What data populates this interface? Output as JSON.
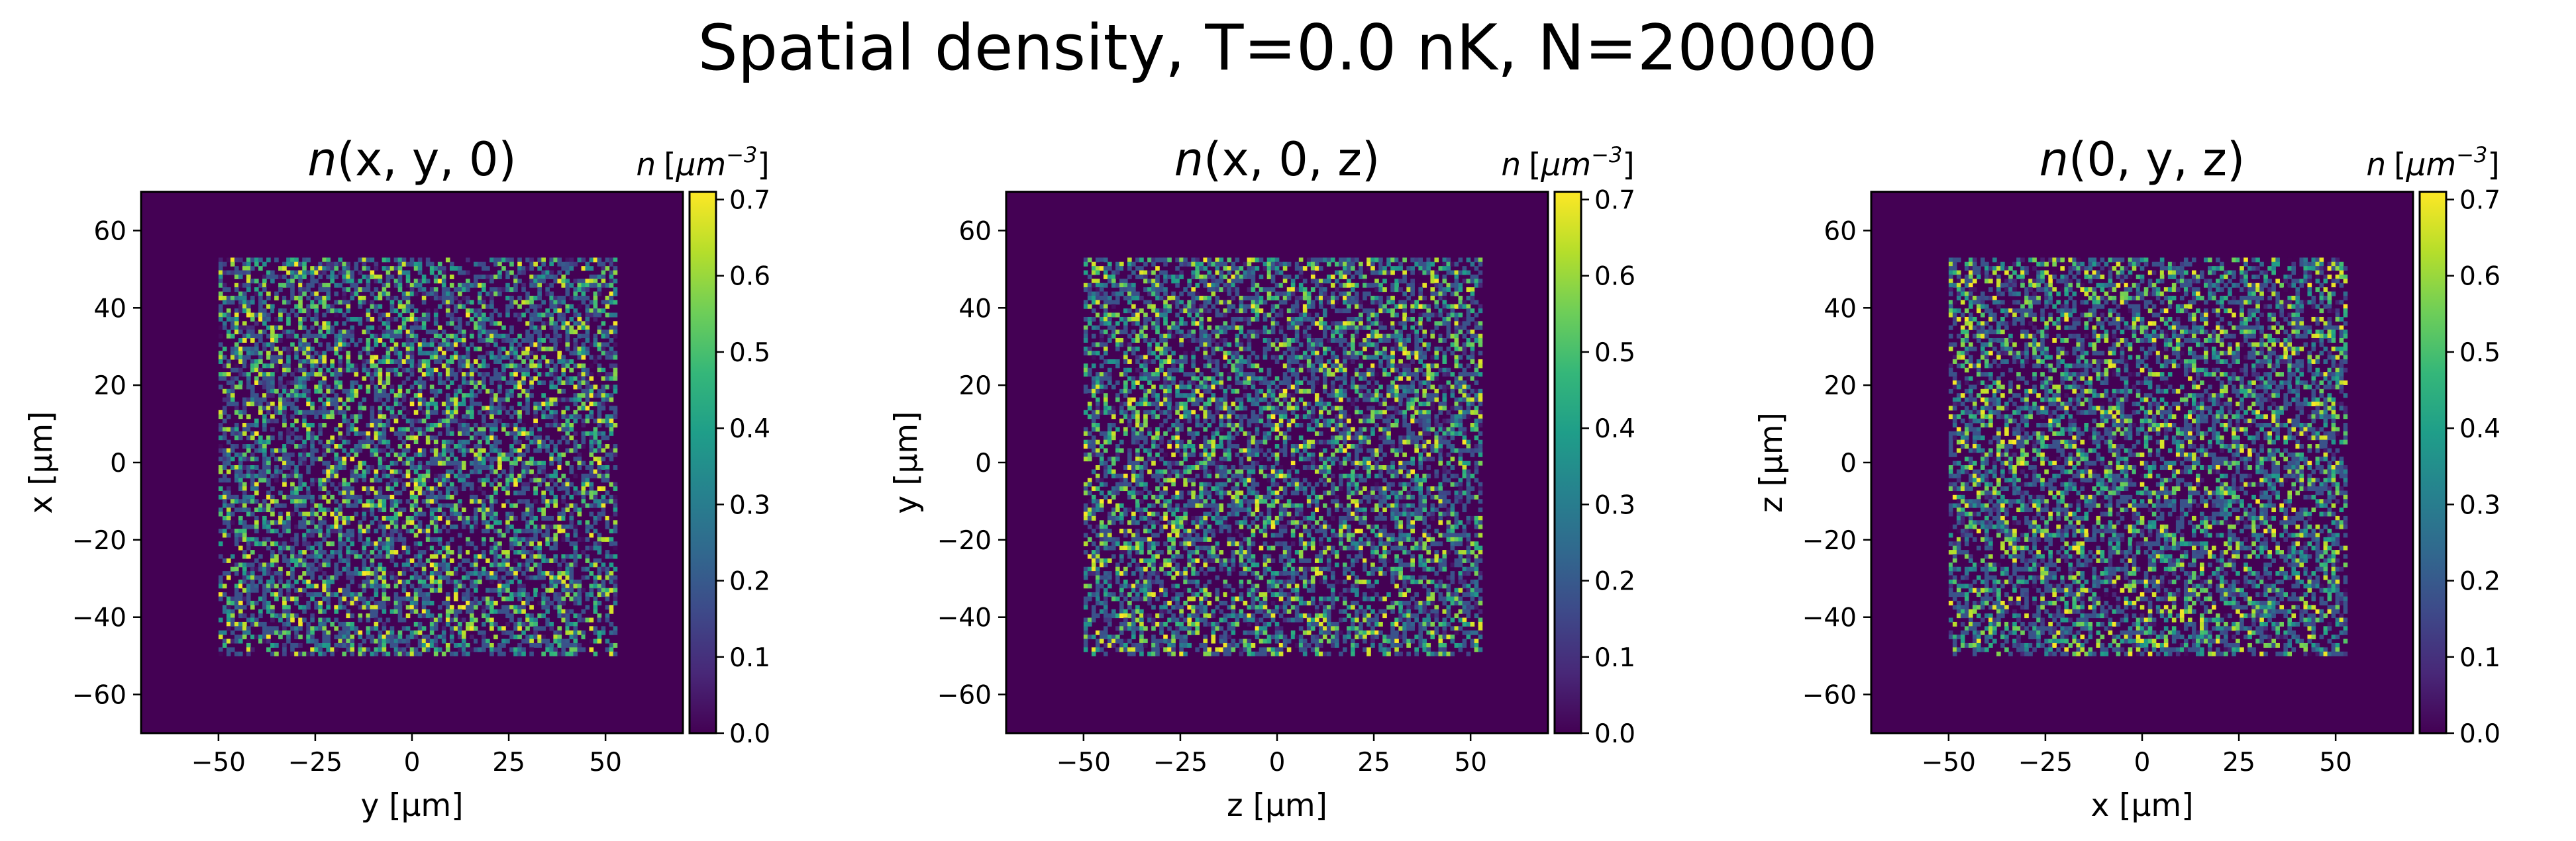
{
  "suptitle": "Spatial density, T=0.0 nK, N=200000",
  "colorbar_label": {
    "symbol": "n",
    "unit_open": "[",
    "unit_base": "μm",
    "unit_exp": "−3",
    "unit_close": "]"
  },
  "colormap": {
    "name": "viridis",
    "stops": [
      "#440154",
      "#482878",
      "#3e4989",
      "#31688e",
      "#26828e",
      "#1f9e89",
      "#35b779",
      "#6ece58",
      "#b5de2b",
      "#fde725"
    ]
  },
  "chart_data": [
    {
      "type": "heatmap",
      "title_func": "n",
      "title_args": "(x, y, 0)",
      "xlabel": "y [μm]",
      "ylabel": "x [μm]",
      "xlim": [
        -70,
        70
      ],
      "ylim": [
        -70,
        70
      ],
      "xticks": [
        -50,
        -25,
        0,
        25,
        50
      ],
      "xtick_labels": [
        "−50",
        "−25",
        "0",
        "25",
        "50"
      ],
      "yticks": [
        -60,
        -40,
        -20,
        0,
        20,
        40,
        60
      ],
      "ytick_labels": [
        "−60",
        "−40",
        "−20",
        "0",
        "20",
        "40",
        "60"
      ],
      "populated_region": {
        "x": [
          -50,
          53
        ],
        "y": [
          -50,
          53
        ]
      },
      "colorbar": {
        "vmin": 0.0,
        "vmax": 0.71,
        "ticks": [
          0.0,
          0.1,
          0.2,
          0.3,
          0.4,
          0.5,
          0.6,
          0.7
        ],
        "tick_labels": [
          "0.0",
          "0.1",
          "0.2",
          "0.3",
          "0.4",
          "0.5",
          "0.6",
          "0.7"
        ]
      },
      "grid": false
    },
    {
      "type": "heatmap",
      "title_func": "n",
      "title_args": "(x, 0, z)",
      "xlabel": "z [μm]",
      "ylabel": "y [μm]",
      "xlim": [
        -70,
        70
      ],
      "ylim": [
        -70,
        70
      ],
      "xticks": [
        -50,
        -25,
        0,
        25,
        50
      ],
      "xtick_labels": [
        "−50",
        "−25",
        "0",
        "25",
        "50"
      ],
      "yticks": [
        -60,
        -40,
        -20,
        0,
        20,
        40,
        60
      ],
      "ytick_labels": [
        "−60",
        "−40",
        "−20",
        "0",
        "20",
        "40",
        "60"
      ],
      "populated_region": {
        "x": [
          -50,
          53
        ],
        "y": [
          -50,
          53
        ]
      },
      "colorbar": {
        "vmin": 0.0,
        "vmax": 0.71,
        "ticks": [
          0.0,
          0.1,
          0.2,
          0.3,
          0.4,
          0.5,
          0.6,
          0.7
        ],
        "tick_labels": [
          "0.0",
          "0.1",
          "0.2",
          "0.3",
          "0.4",
          "0.5",
          "0.6",
          "0.7"
        ]
      },
      "grid": false
    },
    {
      "type": "heatmap",
      "title_func": "n",
      "title_args": "(0, y, z)",
      "xlabel": "x [μm]",
      "ylabel": "z [μm]",
      "xlim": [
        -70,
        70
      ],
      "ylim": [
        -70,
        70
      ],
      "xticks": [
        -50,
        -25,
        0,
        25,
        50
      ],
      "xtick_labels": [
        "−50",
        "−25",
        "0",
        "25",
        "50"
      ],
      "yticks": [
        -60,
        -40,
        -20,
        0,
        20,
        40,
        60
      ],
      "ytick_labels": [
        "−60",
        "−40",
        "−20",
        "0",
        "20",
        "40",
        "60"
      ],
      "populated_region": {
        "x": [
          -50,
          53
        ],
        "y": [
          -50,
          53
        ]
      },
      "colorbar": {
        "vmin": 0.0,
        "vmax": 0.71,
        "ticks": [
          0.0,
          0.1,
          0.2,
          0.3,
          0.4,
          0.5,
          0.6,
          0.7
        ],
        "tick_labels": [
          "0.0",
          "0.1",
          "0.2",
          "0.3",
          "0.4",
          "0.5",
          "0.6",
          "0.7"
        ]
      },
      "grid": false
    }
  ]
}
